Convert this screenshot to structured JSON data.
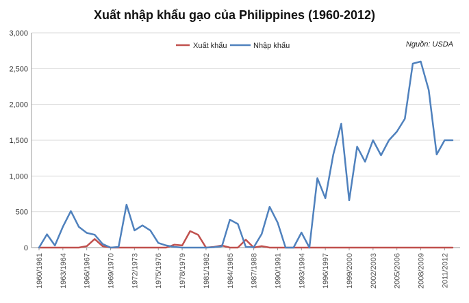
{
  "chart_data": {
    "type": "line",
    "title": "Xuất nhập khẩu gạo của Philippines (1960-2012)",
    "source_note": "Nguồn: USDA",
    "xlabel": "",
    "ylabel": "",
    "ylim": [
      0,
      3000
    ],
    "yticks": [
      "0",
      "500",
      "1,000",
      "1,500",
      "2,000",
      "2,500",
      "3,000"
    ],
    "ytick_values": [
      0,
      500,
      1000,
      1500,
      2000,
      2500,
      3000
    ],
    "categories": [
      "1960/1961",
      "1961/1962",
      "1962/1963",
      "1963/1964",
      "1964/1965",
      "1965/1966",
      "1966/1967",
      "1967/1968",
      "1968/1969",
      "1969/1970",
      "1970/1971",
      "1971/1972",
      "1972/1973",
      "1973/1974",
      "1974/1975",
      "1975/1976",
      "1976/1977",
      "1977/1978",
      "1978/1979",
      "1979/1980",
      "1980/1981",
      "1981/1982",
      "1982/1983",
      "1983/1984",
      "1984/1985",
      "1985/1986",
      "1986/1987",
      "1987/1988",
      "1988/1989",
      "1989/1990",
      "1990/1991",
      "1991/1992",
      "1992/1993",
      "1993/1994",
      "1994/1995",
      "1995/1996",
      "1996/1997",
      "1997/1998",
      "1998/1999",
      "1999/2000",
      "2000/2001",
      "2001/2002",
      "2002/2003",
      "2003/2004",
      "2004/2005",
      "2005/2006",
      "2006/2007",
      "2007/2008",
      "2008/2009",
      "2009/2010",
      "2010/2011",
      "2011/2012",
      "2012/2013"
    ],
    "xtick_labels": [
      "1960/1961",
      "1963/1964",
      "1966/1967",
      "1969/1970",
      "1972/1973",
      "1975/1976",
      "1978/1979",
      "1981/1982",
      "1984/1985",
      "1987/1988",
      "1990/1991",
      "1993/1994",
      "1996/1997",
      "1999/2000",
      "2002/2003",
      "2005/2006",
      "2008/2009",
      "2011/2012"
    ],
    "legend_position": "top-center",
    "grid": "horizontal",
    "series": [
      {
        "name": "Xuất khẩu",
        "color": "#c0504d",
        "values": [
          0,
          0,
          0,
          0,
          0,
          0,
          20,
          120,
          20,
          0,
          0,
          0,
          0,
          0,
          0,
          0,
          0,
          40,
          30,
          230,
          180,
          0,
          10,
          30,
          0,
          0,
          110,
          0,
          20,
          0,
          0,
          0,
          0,
          0,
          0,
          0,
          0,
          0,
          0,
          0,
          0,
          0,
          0,
          0,
          0,
          0,
          0,
          0,
          0,
          0,
          0,
          0,
          0
        ]
      },
      {
        "name": "Nhập khẩu",
        "color": "#4f81bd",
        "values": [
          0,
          185,
          30,
          290,
          510,
          290,
          205,
          180,
          50,
          0,
          10,
          600,
          240,
          310,
          240,
          65,
          30,
          10,
          0,
          0,
          0,
          0,
          5,
          20,
          390,
          330,
          10,
          5,
          190,
          570,
          350,
          0,
          0,
          210,
          0,
          970,
          690,
          1300,
          1730,
          660,
          1410,
          1200,
          1500,
          1290,
          1500,
          1620,
          1800,
          2570,
          2600,
          2200,
          1300,
          1500,
          1500
        ]
      }
    ]
  }
}
